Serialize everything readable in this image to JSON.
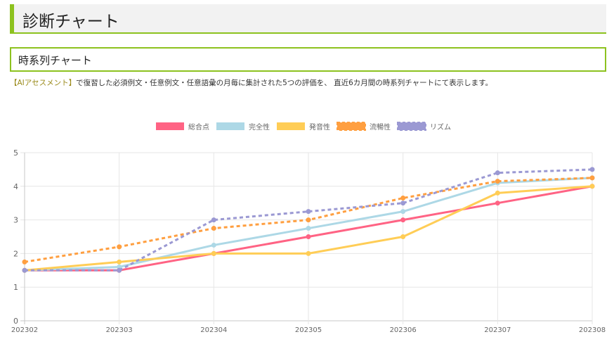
{
  "header": {
    "title": "診断チャート"
  },
  "section": {
    "title": "時系列チャート"
  },
  "description": {
    "highlight": "【AIアセスメント】",
    "text": "で復習した必須例文・任意例文・任意語彙の月毎に集計された5つの評価を、 直近6カ月間の時系列チャートにて表示します。"
  },
  "chart_data": {
    "type": "line",
    "title": "",
    "xlabel": "",
    "ylabel": "",
    "ylim": [
      0,
      5
    ],
    "yticks": [
      "0",
      "1",
      "2",
      "3",
      "4",
      "5"
    ],
    "grid": true,
    "legend_position": "top-center",
    "categories": [
      "202302",
      "202303",
      "202304",
      "202305",
      "202306",
      "202307",
      "202308"
    ],
    "series": [
      {
        "name": "総合点",
        "color": "#ff6384",
        "dashed": false,
        "values": [
          1.5,
          1.5,
          2.0,
          2.5,
          3.0,
          3.5,
          4.0
        ]
      },
      {
        "name": "完全性",
        "color": "#add8e6",
        "dashed": false,
        "values": [
          1.5,
          1.6,
          2.25,
          2.75,
          3.25,
          4.1,
          4.25
        ]
      },
      {
        "name": "発音性",
        "color": "#ffcd56",
        "dashed": false,
        "values": [
          1.5,
          1.75,
          2.0,
          2.0,
          2.5,
          3.8,
          4.0
        ]
      },
      {
        "name": "流暢性",
        "color": "#ff9f40",
        "dashed": true,
        "values": [
          1.75,
          2.2,
          2.75,
          3.0,
          3.65,
          4.15,
          4.25
        ]
      },
      {
        "name": "リズム",
        "color": "#9b99d3",
        "dashed": true,
        "values": [
          1.5,
          1.5,
          3.0,
          3.25,
          3.5,
          4.4,
          4.5
        ]
      }
    ]
  }
}
